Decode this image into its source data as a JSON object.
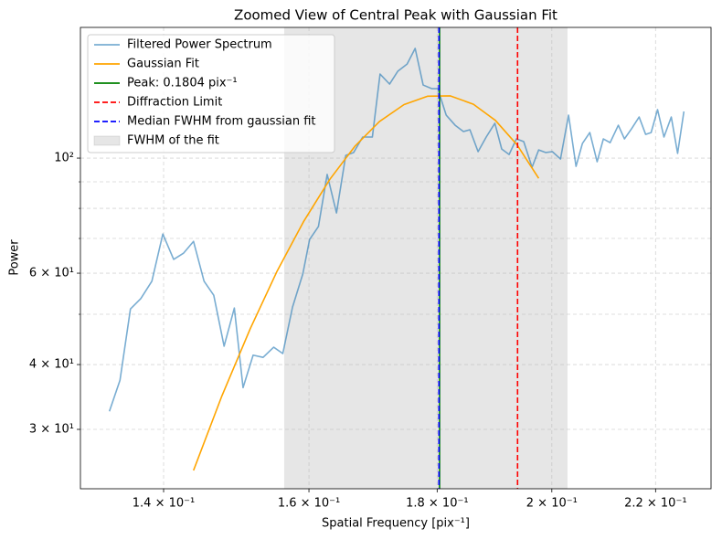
{
  "chart_data": {
    "type": "line",
    "title": "Zoomed View of Central Peak with Gaussian Fit",
    "xlabel": "Spatial Frequency [pix⁻¹]",
    "ylabel": "Power",
    "xscale": "log",
    "yscale": "log",
    "xlim": [
      0.1297,
      0.2315
    ],
    "ylim": [
      23.05,
      178.6
    ],
    "xticks": [
      {
        "value": 0.14,
        "label": "1.4 × 10⁻¹"
      },
      {
        "value": 0.16,
        "label": "1.6 × 10⁻¹"
      },
      {
        "value": 0.18,
        "label": "1.8 × 10⁻¹"
      },
      {
        "value": 0.2,
        "label": "2 × 10⁻¹"
      },
      {
        "value": 0.22,
        "label": "2.2 × 10⁻¹"
      }
    ],
    "yticks": [
      {
        "value": 30,
        "label": "3 × 10¹"
      },
      {
        "value": 40,
        "label": "4 × 10¹"
      },
      {
        "value": 60,
        "label": "6 × 10¹"
      },
      {
        "value": 100,
        "label": "10²"
      }
    ],
    "yminorticks": [
      50,
      70,
      80,
      90
    ],
    "grid": true,
    "legend": "upper left",
    "series": [
      {
        "name": "Filtered Power Spectrum",
        "color": "#1f77b4",
        "alpha": 0.6,
        "x": [
          0.1332,
          0.1345,
          0.1358,
          0.1371,
          0.1385,
          0.1399,
          0.1413,
          0.1426,
          0.1439,
          0.1453,
          0.1466,
          0.148,
          0.1494,
          0.1506,
          0.152,
          0.1534,
          0.1549,
          0.1562,
          0.1576,
          0.1591,
          0.1601,
          0.1614,
          0.1627,
          0.1641,
          0.1655,
          0.1667,
          0.1681,
          0.1696,
          0.1708,
          0.1723,
          0.1736,
          0.1751,
          0.1764,
          0.1777,
          0.1791,
          0.1801,
          0.1815,
          0.183,
          0.1844,
          0.1855,
          0.1869,
          0.1883,
          0.1898,
          0.191,
          0.1923,
          0.1936,
          0.1949,
          0.1964,
          0.1976,
          0.1989,
          0.2001,
          0.2016,
          0.2031,
          0.2045,
          0.2057,
          0.2071,
          0.2085,
          0.2097,
          0.211,
          0.2126,
          0.2138,
          0.2152,
          0.2167,
          0.218,
          0.2191,
          0.2204,
          0.2217,
          0.2232,
          0.2245,
          0.2258
        ],
        "values": [
          32.5,
          37.3,
          51.2,
          53.6,
          57.9,
          71.4,
          63.8,
          65.6,
          69.1,
          57.9,
          54.4,
          43.4,
          51.4,
          36.1,
          41.7,
          41.3,
          43.2,
          42.0,
          51.6,
          59.8,
          69.7,
          73.8,
          93.0,
          78.4,
          101.2,
          102.5,
          109.8,
          109.8,
          145.2,
          138.9,
          147.0,
          151.8,
          162.7,
          138.3,
          136.1,
          136.1,
          121.0,
          115.7,
          112.5,
          113.4,
          102.9,
          109.8,
          116.7,
          104.1,
          101.6,
          108.9,
          107.6,
          96.0,
          103.7,
          102.5,
          102.9,
          99.6,
          121.0,
          96.4,
          106.7,
          112.0,
          98.4,
          108.9,
          107.1,
          115.7,
          108.9,
          113.9,
          120.0,
          111.1,
          112.0,
          124.0,
          109.8,
          120.0,
          102.1,
          123.0
        ]
      },
      {
        "name": "Gaussian Fit",
        "color": "#ffa500",
        "alpha": 1,
        "x": [
          0.1439,
          0.1477,
          0.1516,
          0.1554,
          0.1592,
          0.1631,
          0.1669,
          0.1707,
          0.1746,
          0.1784,
          0.1822,
          0.1861,
          0.1899,
          0.1937,
          0.1976
        ],
        "values": [
          25.0,
          34.8,
          46.9,
          60.6,
          75.4,
          91.0,
          105.4,
          117.6,
          126.8,
          131.6,
          131.8,
          127.0,
          118.2,
          106.1,
          91.4
        ]
      }
    ],
    "vlines": [
      {
        "name": "Peak: 0.1804 pix⁻¹",
        "x": 0.1804,
        "color": "#008000",
        "style": "solid"
      },
      {
        "name": "Diffraction Limit",
        "x": 0.1938,
        "color": "#ff0000",
        "style": "dashed"
      },
      {
        "name": "Median FWHM from gaussian fit",
        "x": 0.1803,
        "color": "#0000ff",
        "style": "dashed"
      }
    ],
    "spans": [
      {
        "name": "FWHM of the fit",
        "x": [
          0.1564,
          0.2029
        ],
        "color": "#808080",
        "alpha": 0.2
      }
    ]
  }
}
